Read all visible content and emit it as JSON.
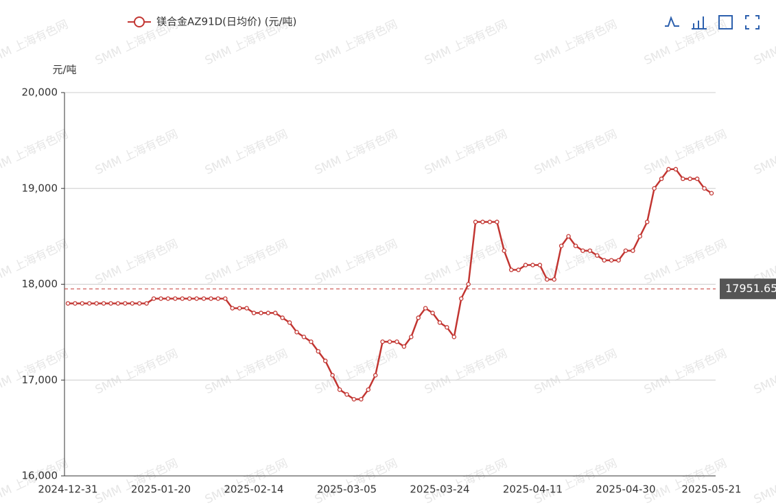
{
  "chart_data": {
    "type": "line",
    "legend": "镁合金AZ91D(日均价) (元/吨)",
    "y_label": "元/吨",
    "watermark": "SMM 上海有色网",
    "categories": [
      "2024-12-31",
      null,
      null,
      null,
      null,
      null,
      null,
      null,
      null,
      null,
      null,
      null,
      null,
      "2025-01-20",
      null,
      null,
      null,
      null,
      null,
      null,
      null,
      null,
      null,
      null,
      null,
      null,
      "2025-02-14",
      null,
      null,
      null,
      null,
      null,
      null,
      null,
      null,
      null,
      null,
      null,
      null,
      "2025-03-05",
      null,
      null,
      null,
      null,
      null,
      null,
      null,
      null,
      null,
      null,
      null,
      null,
      "2025-03-24",
      null,
      null,
      null,
      null,
      null,
      null,
      null,
      null,
      null,
      null,
      null,
      null,
      "2025-04-11",
      null,
      null,
      null,
      null,
      null,
      null,
      null,
      null,
      null,
      null,
      null,
      null,
      "2025-04-30",
      null,
      null,
      null,
      null,
      null,
      null,
      null,
      null,
      null,
      null,
      null,
      "2025-05-21"
    ],
    "series": [
      {
        "name": "镁合金AZ91D(日均价) (元/吨)",
        "color": "#c23531",
        "values": [
          17800,
          17800,
          17800,
          17800,
          17800,
          17800,
          17800,
          17800,
          17800,
          17800,
          17800,
          17800,
          17850,
          17850,
          17850,
          17850,
          17850,
          17850,
          17850,
          17850,
          17850,
          17850,
          17850,
          17750,
          17750,
          17750,
          17700,
          17700,
          17700,
          17700,
          17650,
          17600,
          17500,
          17450,
          17400,
          17300,
          17200,
          17050,
          16900,
          16850,
          16800,
          16800,
          16900,
          17050,
          17400,
          17400,
          17400,
          17350,
          17450,
          17650,
          17750,
          17700,
          17600,
          17550,
          17450,
          17850,
          18000,
          18650,
          18650,
          18650,
          18650,
          18350,
          18150,
          18150,
          18200,
          18200,
          18200,
          18050,
          18050,
          18400,
          18500,
          18400,
          18350,
          18350,
          18300,
          18250,
          18250,
          18250,
          18350,
          18350,
          18500,
          18650,
          19000,
          19100,
          19200,
          19200,
          19100,
          19100,
          19100,
          19000,
          18950
        ]
      }
    ],
    "mark_line": 17951.65,
    "ylim": [
      16000,
      20000
    ],
    "yticks": [
      {
        "value": 16000,
        "label": "16,000"
      },
      {
        "value": 17000,
        "label": "17,000"
      },
      {
        "value": 18000,
        "label": "18,000"
      },
      {
        "value": 19000,
        "label": "19,000"
      },
      {
        "value": 20000,
        "label": "20,000"
      }
    ],
    "grid": true
  }
}
